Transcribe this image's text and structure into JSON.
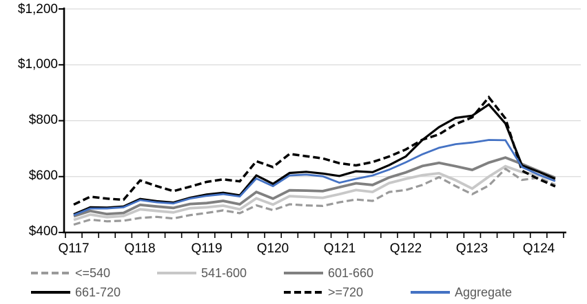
{
  "chart_data": {
    "type": "line",
    "title": "",
    "xlabel": "",
    "ylabel": "",
    "ylim": [
      400,
      1200
    ],
    "y_ticks": [
      "$400",
      "$600",
      "$800",
      "$1,000",
      "$1,200"
    ],
    "x_tick_labels": [
      "Q117",
      "Q118",
      "Q119",
      "Q120",
      "Q121",
      "Q122",
      "Q123",
      "Q124"
    ],
    "categories": [
      "Q117",
      "Q217",
      "Q317",
      "Q417",
      "Q118",
      "Q218",
      "Q318",
      "Q418",
      "Q119",
      "Q219",
      "Q319",
      "Q419",
      "Q120",
      "Q220",
      "Q320",
      "Q420",
      "Q121",
      "Q221",
      "Q321",
      "Q421",
      "Q122",
      "Q222",
      "Q322",
      "Q422",
      "Q123",
      "Q223",
      "Q323",
      "Q423",
      "Q124",
      "Q224"
    ],
    "grid": "horizontal",
    "legend_position": "bottom",
    "axis_color": "#000000",
    "gridline_color": "#d9d9d9",
    "series": [
      {
        "name": "<=540",
        "color": "#9a9a9a",
        "style": "dashed",
        "width": 3.2,
        "values": [
          428,
          446,
          440,
          442,
          452,
          456,
          450,
          462,
          470,
          479,
          469,
          497,
          480,
          501,
          497,
          495,
          508,
          518,
          513,
          545,
          552,
          570,
          598,
          566,
          537,
          568,
          628,
          588,
          596,
          570
        ]
      },
      {
        "name": "541-600",
        "color": "#c8c8c8",
        "style": "solid",
        "width": 3.8,
        "values": [
          445,
          464,
          455,
          459,
          483,
          477,
          472,
          487,
          490,
          496,
          483,
          522,
          500,
          530,
          527,
          524,
          537,
          552,
          545,
          577,
          592,
          605,
          612,
          587,
          557,
          600,
          637,
          616,
          605,
          585
        ]
      },
      {
        "name": "601-660",
        "color": "#808080",
        "style": "solid",
        "width": 3.8,
        "values": [
          458,
          477,
          466,
          470,
          499,
          493,
          488,
          502,
          505,
          513,
          501,
          545,
          521,
          551,
          550,
          548,
          562,
          576,
          570,
          597,
          615,
          638,
          649,
          637,
          624,
          650,
          668,
          645,
          620,
          596
        ]
      },
      {
        "name": "661-720",
        "color": "#000000",
        "style": "solid",
        "width": 3.2,
        "values": [
          465,
          490,
          489,
          493,
          520,
          512,
          507,
          524,
          536,
          542,
          533,
          604,
          574,
          613,
          617,
          611,
          602,
          619,
          616,
          641,
          672,
          731,
          777,
          810,
          818,
          858,
          790,
          640,
          617,
          592
        ]
      },
      {
        "name": ">=720",
        "color": "#000000",
        "style": "dashed",
        "width": 3.5,
        "values": [
          500,
          528,
          521,
          517,
          586,
          566,
          548,
          564,
          581,
          590,
          583,
          655,
          634,
          681,
          673,
          665,
          648,
          640,
          652,
          672,
          697,
          732,
          751,
          788,
          812,
          884,
          808,
          621,
          591,
          565
        ]
      },
      {
        "name": "Aggregate",
        "color": "#4472c4",
        "style": "solid",
        "width": 2.8,
        "values": [
          462,
          486,
          486,
          490,
          516,
          508,
          504,
          521,
          531,
          537,
          529,
          593,
          566,
          604,
          607,
          601,
          578,
          592,
          604,
          625,
          651,
          680,
          703,
          716,
          722,
          731,
          730,
          634,
          607,
          584
        ]
      }
    ]
  }
}
